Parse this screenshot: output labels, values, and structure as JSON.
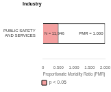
{
  "chart_data": {
    "type": "bar",
    "orientation": "horizontal",
    "categories": [
      "PUBLIC SAFETY AND SERVICES"
    ],
    "series": [
      {
        "color": "#ffffff",
        "values": [
          2.0
        ]
      },
      {
        "name": "p < 0.05",
        "color": "#f4a0a0",
        "values": [
          0.502
        ]
      }
    ],
    "xlabel": "Proportionate Mortality Ratio (PMR)",
    "ylabel": "Industry",
    "annotations": [
      "N = 11,946",
      "PMR = 1.000"
    ],
    "xlim": [
      0,
      2.0
    ],
    "xticks": [
      0,
      {
        "value": 0.5,
        "label": "0.500"
      },
      {
        "value": 1.0,
        "label": "1.000"
      },
      {
        "value": 1.5,
        "label": "1.500"
      },
      {
        "value": 2.0,
        "label": "2.000"
      }
    ],
    "grid": false,
    "legend": "bottom"
  }
}
